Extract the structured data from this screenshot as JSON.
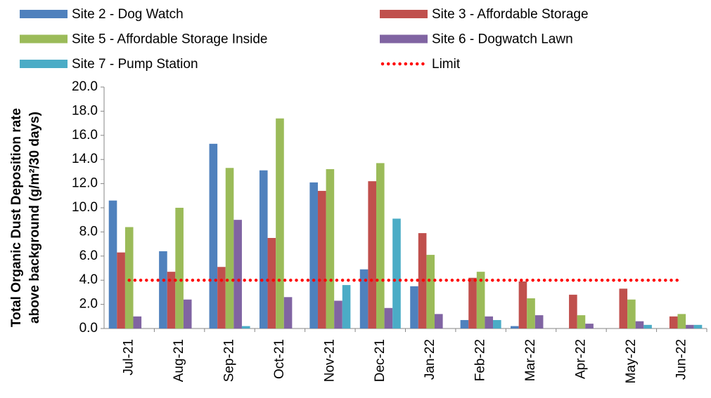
{
  "chart_data": {
    "type": "bar",
    "ylabel": [
      "Total Organic Dust Deposition rate",
      "above background  (g/m²/30 days)"
    ],
    "categories": [
      "Jul-21",
      "Aug-21",
      "Sep-21",
      "Oct-21",
      "Nov-21",
      "Dec-21",
      "Jan-22",
      "Feb-22",
      "Mar-22",
      "Apr-22",
      "May-22",
      "Jun-22"
    ],
    "series": [
      {
        "name": "Site 2 - Dog Watch",
        "color": "#4f81bd",
        "values": [
          10.6,
          6.4,
          15.3,
          13.1,
          12.1,
          4.9,
          3.5,
          0.7,
          0.2,
          0,
          0,
          0
        ]
      },
      {
        "name": "Site 3 - Affordable Storage",
        "color": "#c0504d",
        "values": [
          6.3,
          4.7,
          5.1,
          7.5,
          11.4,
          12.2,
          7.9,
          4.2,
          3.9,
          2.8,
          3.3,
          1.0
        ]
      },
      {
        "name": "Site 5 - Affordable Storage Inside",
        "color": "#9bbb59",
        "values": [
          8.4,
          10.0,
          13.3,
          17.4,
          13.2,
          13.7,
          6.1,
          4.7,
          2.5,
          1.1,
          2.4,
          1.2
        ]
      },
      {
        "name": "Site 6 - Dogwatch Lawn",
        "color": "#8064a2",
        "values": [
          1.0,
          2.4,
          9.0,
          2.6,
          2.3,
          1.7,
          1.2,
          1.0,
          1.1,
          0.4,
          0.6,
          0.3
        ]
      },
      {
        "name": "Site 7 - Pump Station",
        "color": "#4bacc6",
        "values": [
          0,
          0,
          0.2,
          0,
          3.6,
          9.1,
          0,
          0.7,
          0,
          0,
          0.3,
          0.3
        ]
      },
      {
        "name": "Limit",
        "type": "line",
        "color": "#ff0000",
        "values": [
          4,
          4,
          4,
          4,
          4,
          4,
          4,
          4,
          4,
          4,
          4,
          4
        ]
      }
    ],
    "ylim": [
      0,
      20
    ],
    "yticks": [
      {
        "value": 0,
        "label": "0.0"
      },
      {
        "value": 2,
        "label": "2.0"
      },
      {
        "value": 4,
        "label": "4.0"
      },
      {
        "value": 6,
        "label": "6.0"
      },
      {
        "value": 8,
        "label": "8.0"
      },
      {
        "value": 10,
        "label": "10.0"
      },
      {
        "value": 12,
        "label": "12.0"
      },
      {
        "value": 14,
        "label": "14.0"
      },
      {
        "value": 16,
        "label": "16.0"
      },
      {
        "value": 18,
        "label": "18.0"
      },
      {
        "value": 20,
        "label": "20.0"
      }
    ],
    "grid": false,
    "legend": "top"
  }
}
